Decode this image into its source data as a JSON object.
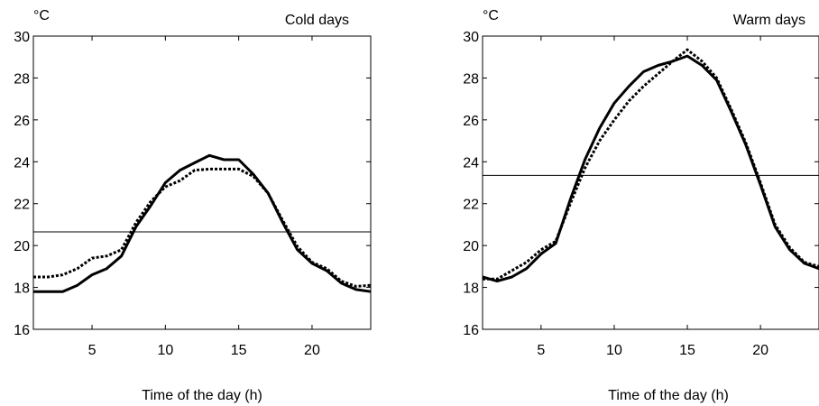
{
  "chart_data": [
    {
      "type": "line",
      "title": "Cold days",
      "unit_label": "°C",
      "xlabel": "Time of the day (h)",
      "xlim": [
        1,
        24
      ],
      "ylim": [
        16,
        30
      ],
      "xticks": [
        5,
        10,
        15,
        20
      ],
      "yticks": [
        16,
        18,
        20,
        22,
        24,
        26,
        28,
        30
      ],
      "x": [
        1,
        2,
        3,
        4,
        5,
        6,
        7,
        8,
        9,
        10,
        11,
        12,
        13,
        14,
        15,
        16,
        17,
        18,
        19,
        20,
        21,
        22,
        23,
        24
      ],
      "series": [
        {
          "style": "solid",
          "values": [
            17.8,
            17.8,
            17.8,
            18.1,
            18.6,
            18.9,
            19.5,
            20.9,
            21.9,
            23.0,
            23.6,
            23.95,
            24.3,
            24.1,
            24.1,
            23.4,
            22.5,
            21.1,
            19.8,
            19.15,
            18.8,
            18.2,
            17.9,
            17.8
          ]
        },
        {
          "style": "dotted",
          "values": [
            18.5,
            18.5,
            18.6,
            18.9,
            19.4,
            19.5,
            19.8,
            21.1,
            22.1,
            22.8,
            23.1,
            23.6,
            23.65,
            23.65,
            23.65,
            23.3,
            22.5,
            21.2,
            19.95,
            19.2,
            18.9,
            18.3,
            18.05,
            18.1
          ]
        }
      ],
      "reference_line": 20.65,
      "colors": {
        "line": "#000000",
        "reference": "#000000"
      }
    },
    {
      "type": "line",
      "title": "Warm days",
      "unit_label": "°C",
      "xlabel": "Time of the day (h)",
      "xlim": [
        1,
        24
      ],
      "ylim": [
        16,
        30
      ],
      "xticks": [
        5,
        10,
        15,
        20
      ],
      "yticks": [
        16,
        18,
        20,
        22,
        24,
        26,
        28,
        30
      ],
      "x": [
        1,
        2,
        3,
        4,
        5,
        6,
        7,
        8,
        9,
        10,
        11,
        12,
        13,
        14,
        15,
        16,
        17,
        18,
        19,
        20,
        21,
        22,
        23,
        24
      ],
      "series": [
        {
          "style": "solid",
          "values": [
            18.5,
            18.3,
            18.5,
            18.9,
            19.6,
            20.1,
            22.2,
            24.1,
            25.6,
            26.8,
            27.6,
            28.3,
            28.6,
            28.8,
            29.05,
            28.6,
            27.9,
            26.4,
            24.8,
            22.9,
            20.9,
            19.8,
            19.15,
            18.9
          ]
        },
        {
          "style": "dotted",
          "values": [
            18.4,
            18.4,
            18.8,
            19.2,
            19.8,
            20.2,
            22.0,
            23.7,
            25.0,
            26.0,
            26.9,
            27.6,
            28.2,
            28.8,
            29.35,
            28.8,
            28.0,
            26.5,
            24.9,
            23.0,
            21.0,
            19.9,
            19.2,
            19.0
          ]
        }
      ],
      "reference_line": 23.35,
      "colors": {
        "line": "#000000",
        "reference": "#000000"
      }
    }
  ]
}
